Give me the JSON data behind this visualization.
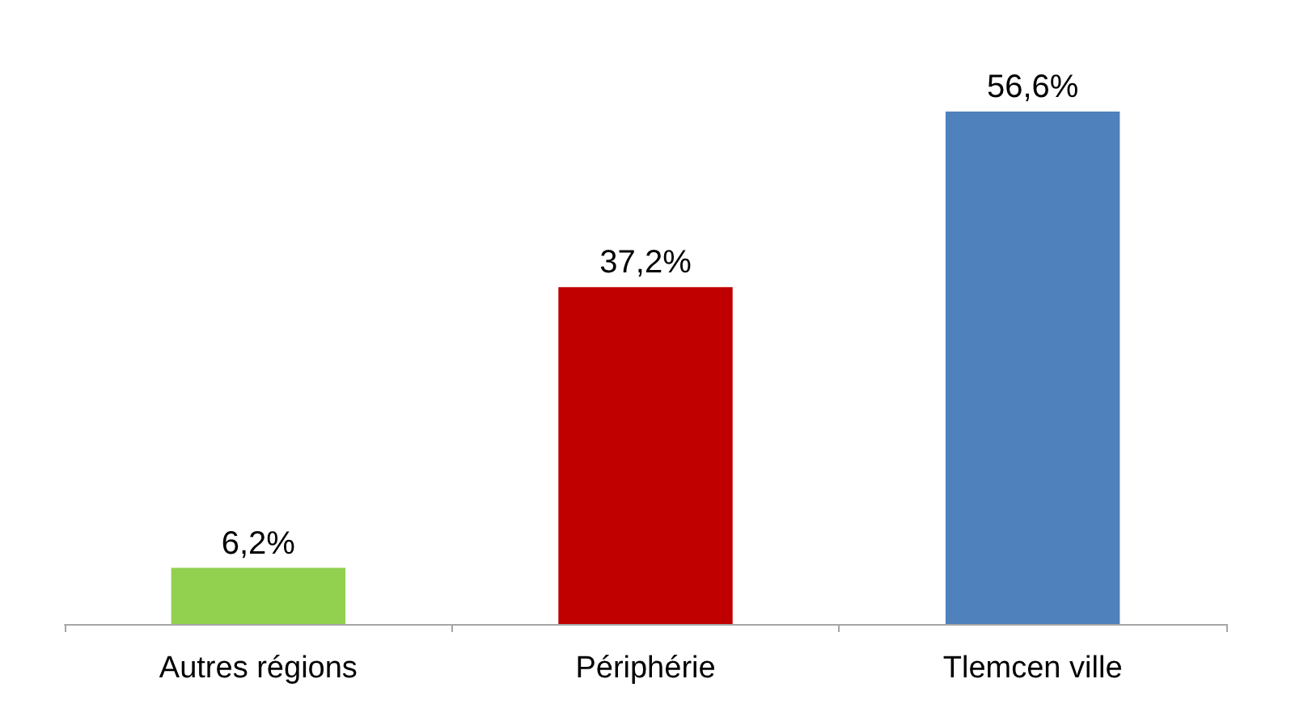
{
  "chart_data": {
    "type": "bar",
    "categories": [
      "Autres régions",
      "Périphérie",
      "Tlemcen ville"
    ],
    "values": [
      6.2,
      37.2,
      56.6
    ],
    "colors": [
      "#92d050",
      "#c00000",
      "#4f81bd"
    ],
    "value_labels": [
      "6,2%",
      "37,2%",
      "56,6%"
    ],
    "grid": false
  }
}
